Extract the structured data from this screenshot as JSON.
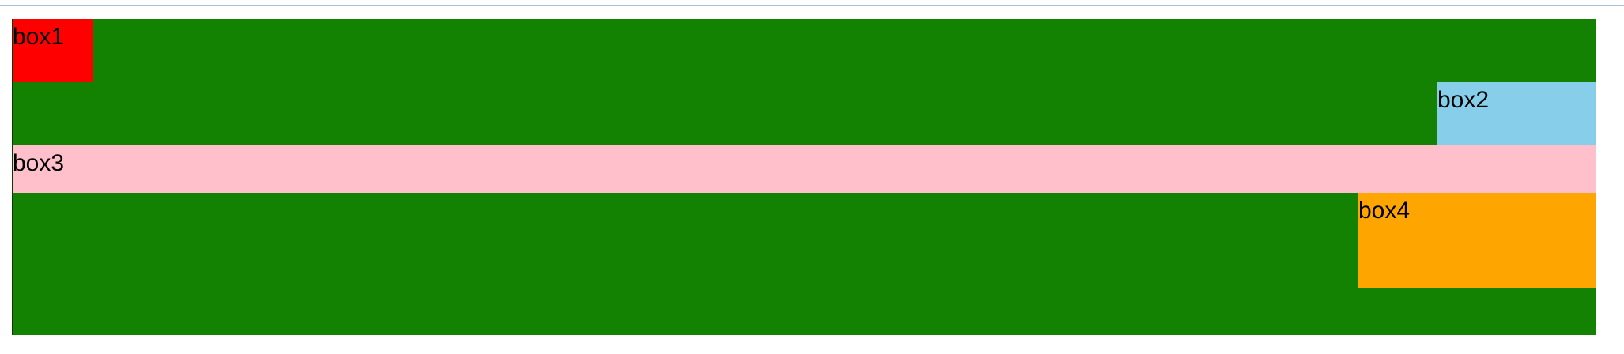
{
  "boxes": [
    {
      "label": "box1",
      "color": "#ff0000"
    },
    {
      "label": "box2",
      "color": "#87ceeb"
    },
    {
      "label": "box3",
      "color": "#ffc0cb"
    },
    {
      "label": "box4",
      "color": "#ffa500"
    }
  ],
  "container": {
    "color": "#138203"
  }
}
